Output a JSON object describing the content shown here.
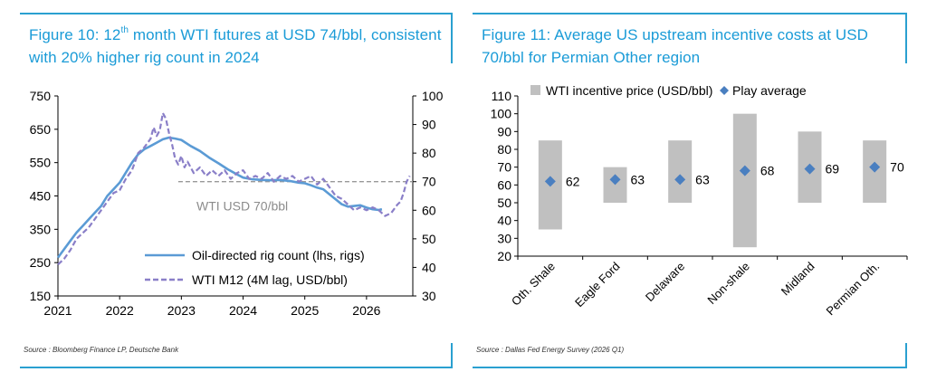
{
  "figures": [
    {
      "title_pre": "Figure 10: 12",
      "title_sup": "th",
      "title_post": " month WTI futures at USD 74/bbl, consistent with 20% higher rig count in 2024",
      "source": "Source : Bloomberg Finance LP, Deutsche Bank"
    },
    {
      "title": "Figure 11: Average US upstream incentive costs at USD 70/bbl for Permian Other region",
      "source": "Source : Dallas Fed Energy Survey (2026 Q1)"
    }
  ],
  "chart_data": [
    {
      "type": "line",
      "x_ticks": [
        "2021",
        "2022",
        "2023",
        "2024",
        "2025",
        "2026"
      ],
      "xlim": [
        2021,
        2026.75
      ],
      "y_left": {
        "ticks": [
          150,
          250,
          350,
          450,
          550,
          650,
          750
        ],
        "lim": [
          150,
          750
        ]
      },
      "y_right": {
        "ticks": [
          30,
          40,
          50,
          60,
          70,
          80,
          90,
          100
        ],
        "lim": [
          30,
          100
        ]
      },
      "grid": false,
      "legend_position": "bottom-right",
      "reference_line": {
        "label": "WTI USD 70/bbl",
        "value_rhs": 70,
        "from_x": 2022.95,
        "color": "#999999"
      },
      "series": [
        {
          "name": "Oil-directed rig count (lhs, rigs)",
          "axis": "left",
          "color": "#5b9bd5",
          "style": "solid",
          "x": [
            2021.0,
            2021.1,
            2021.2,
            2021.3,
            2021.4,
            2021.5,
            2021.6,
            2021.7,
            2021.8,
            2021.9,
            2022.0,
            2022.1,
            2022.2,
            2022.3,
            2022.4,
            2022.5,
            2022.6,
            2022.7,
            2022.8,
            2022.9,
            2023.0,
            2023.15,
            2023.3,
            2023.45,
            2023.6,
            2023.75,
            2023.9,
            2024.0,
            2024.15,
            2024.3,
            2024.45,
            2024.6,
            2024.75,
            2024.9,
            2025.0,
            2025.1,
            2025.2,
            2025.3,
            2025.4,
            2025.5,
            2025.6,
            2025.7,
            2025.8,
            2025.9,
            2026.0,
            2026.1,
            2026.2,
            2026.25
          ],
          "values": [
            265,
            290,
            315,
            340,
            360,
            380,
            400,
            420,
            450,
            470,
            490,
            520,
            550,
            575,
            590,
            600,
            610,
            620,
            625,
            622,
            618,
            600,
            585,
            565,
            548,
            530,
            515,
            505,
            500,
            498,
            497,
            498,
            495,
            490,
            488,
            482,
            475,
            470,
            455,
            440,
            425,
            418,
            420,
            422,
            415,
            410,
            408,
            410
          ]
        },
        {
          "name": "WTI M12 (4M lag, USD/bbl)",
          "axis": "right",
          "color": "#8a7fc8",
          "style": "dashed",
          "x": [
            2021.0,
            2021.1,
            2021.2,
            2021.3,
            2021.4,
            2021.5,
            2021.6,
            2021.7,
            2021.8,
            2021.9,
            2022.0,
            2022.1,
            2022.2,
            2022.3,
            2022.4,
            2022.5,
            2022.55,
            2022.6,
            2022.65,
            2022.7,
            2022.75,
            2022.8,
            2022.85,
            2022.9,
            2022.95,
            2023.0,
            2023.05,
            2023.1,
            2023.2,
            2023.3,
            2023.4,
            2023.5,
            2023.6,
            2023.7,
            2023.8,
            2023.9,
            2024.0,
            2024.1,
            2024.2,
            2024.3,
            2024.4,
            2024.5,
            2024.6,
            2024.7,
            2024.8,
            2024.9,
            2025.0,
            2025.1,
            2025.2,
            2025.3,
            2025.4,
            2025.5,
            2025.6,
            2025.7,
            2025.8,
            2025.9,
            2026.0,
            2026.1,
            2026.2,
            2026.3,
            2026.4,
            2026.5,
            2026.55,
            2026.6,
            2026.65,
            2026.7
          ],
          "values": [
            41,
            43,
            46,
            50,
            52,
            54,
            57,
            60,
            63,
            66,
            67,
            71,
            74,
            80,
            82,
            85,
            89,
            86,
            88,
            94,
            92,
            87,
            83,
            78,
            76,
            79,
            75,
            77,
            73,
            75,
            72,
            74,
            72,
            74,
            71,
            73,
            74,
            71,
            72,
            71,
            73,
            70,
            72,
            71,
            72,
            70,
            71,
            72,
            69,
            71,
            68,
            65,
            64,
            62,
            60,
            61,
            60,
            61,
            60,
            58,
            59,
            62,
            63,
            66,
            70,
            72
          ]
        }
      ]
    },
    {
      "type": "bar",
      "subtype": "floating range bars with point markers",
      "categories": [
        "Oth. Shale",
        "Eagle Ford",
        "Delaware",
        "Non-shale",
        "Midland",
        "Permian Oth."
      ],
      "ylim": [
        20,
        110
      ],
      "y_ticks": [
        20,
        30,
        40,
        50,
        60,
        70,
        80,
        90,
        100,
        110
      ],
      "grid": false,
      "legend_position": "top",
      "series": [
        {
          "name": "WTI incentive price (USD/bbl)",
          "kind": "range",
          "color": "#c0c0c0",
          "low": [
            35,
            50,
            50,
            25,
            50,
            50
          ],
          "high": [
            85,
            70,
            85,
            100,
            90,
            85
          ]
        },
        {
          "name": "Play average",
          "kind": "marker",
          "color": "#4a7fc0",
          "values": [
            62,
            63,
            63,
            68,
            69,
            70
          ]
        }
      ],
      "data_labels": [
        "62",
        "63",
        "63",
        "68",
        "69",
        "70"
      ]
    }
  ]
}
